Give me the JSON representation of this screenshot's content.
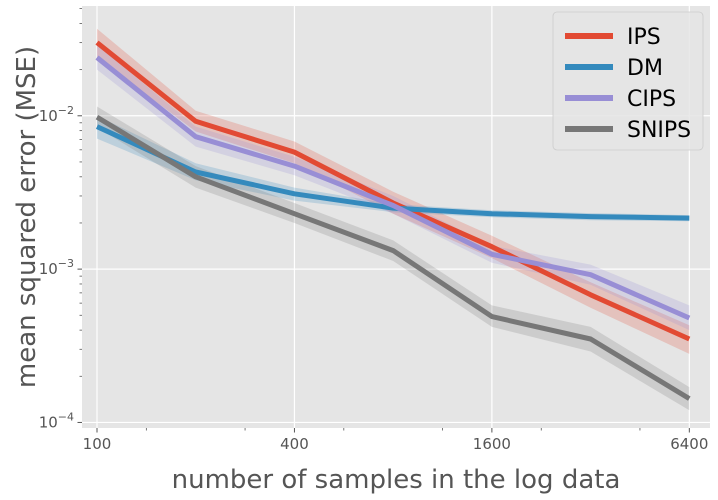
{
  "chart_data": {
    "type": "line",
    "xlabel": "number of samples in the log data",
    "ylabel": "mean squared error (MSE)",
    "x_scale": "log2",
    "y_scale": "log10",
    "xlim": [
      90,
      7400
    ],
    "ylim": [
      9.2e-05,
      0.052
    ],
    "x_ticks": [
      {
        "value": 100,
        "label": "100"
      },
      {
        "value": 400,
        "label": "400"
      },
      {
        "value": 1600,
        "label": "1600"
      },
      {
        "value": 6400,
        "label": "6400"
      }
    ],
    "y_ticks": [
      {
        "value": 0.0001,
        "base": "10",
        "exp": "−4"
      },
      {
        "value": 0.001,
        "base": "10",
        "exp": "−3"
      },
      {
        "value": 0.01,
        "base": "10",
        "exp": "−2"
      }
    ],
    "grid": true,
    "legend_position": "top-right",
    "x": [
      100,
      200,
      400,
      800,
      1600,
      3200,
      6400
    ],
    "series": [
      {
        "name": "IPS",
        "color": "#E24A33",
        "values": [
          0.03,
          0.0092,
          0.0058,
          0.0027,
          0.0014,
          0.00068,
          0.00035
        ],
        "lower": [
          0.024,
          0.0079,
          0.0049,
          0.0023,
          0.00118,
          0.00056,
          0.00028
        ],
        "upper": [
          0.037,
          0.0108,
          0.0068,
          0.0032,
          0.00165,
          0.00082,
          0.00043
        ]
      },
      {
        "name": "DM",
        "color": "#348ABD",
        "values": [
          0.0085,
          0.0043,
          0.0031,
          0.0025,
          0.0023,
          0.0022,
          0.00215
        ],
        "lower": [
          0.0071,
          0.0038,
          0.0028,
          0.00235,
          0.00218,
          0.00208,
          0.00205
        ],
        "upper": [
          0.01,
          0.0049,
          0.0034,
          0.00265,
          0.00242,
          0.00232,
          0.00225
        ]
      },
      {
        "name": "CIPS",
        "color": "#988ED5",
        "values": [
          0.024,
          0.0073,
          0.0047,
          0.0026,
          0.00125,
          0.00092,
          0.00048
        ],
        "lower": [
          0.02,
          0.0063,
          0.0041,
          0.0023,
          0.0011,
          0.00079,
          0.0004
        ],
        "upper": [
          0.029,
          0.0085,
          0.0054,
          0.003,
          0.00142,
          0.00107,
          0.00058
        ]
      },
      {
        "name": "SNIPS",
        "color": "#777777",
        "values": [
          0.0098,
          0.004,
          0.0023,
          0.00132,
          0.00049,
          0.00035,
          0.000143
        ],
        "lower": [
          0.0084,
          0.0034,
          0.002,
          0.00113,
          0.00042,
          0.00029,
          0.00012
        ],
        "upper": [
          0.0115,
          0.0047,
          0.0027,
          0.00154,
          0.00058,
          0.00042,
          0.00017
        ]
      }
    ]
  }
}
